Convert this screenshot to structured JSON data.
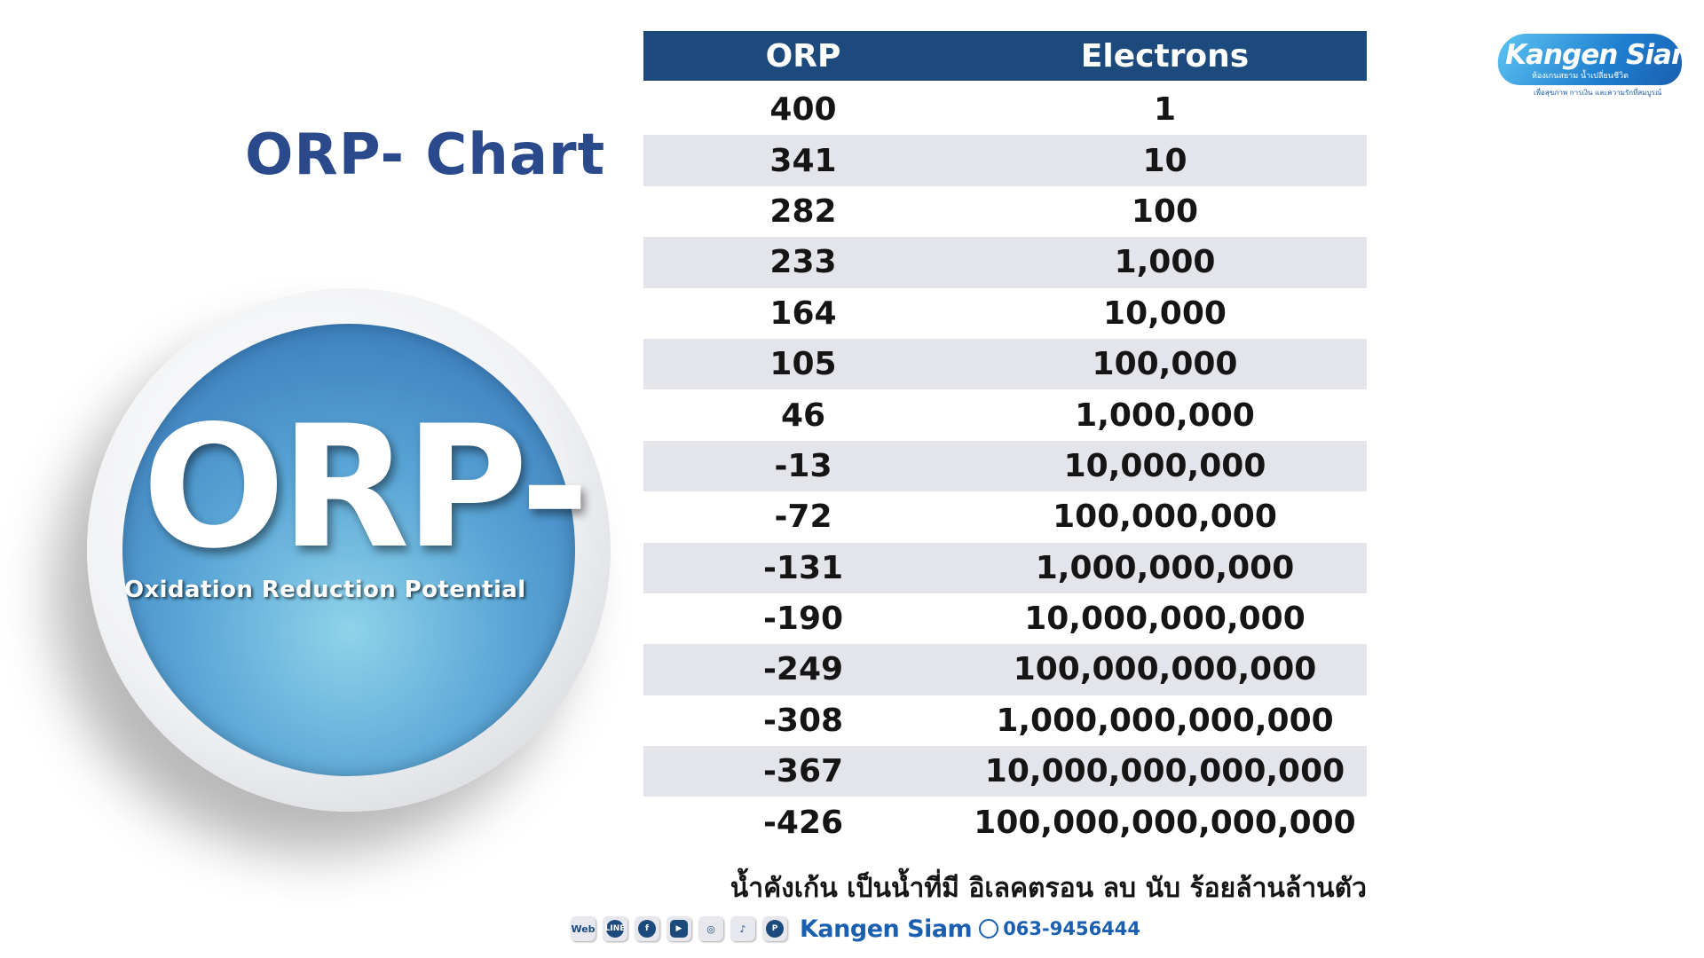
{
  "title": "ORP- Chart",
  "badge": {
    "big_text": "ORP-",
    "subtitle": "Oxidation Reduction Potential"
  },
  "table": {
    "headers": [
      "ORP",
      "Electrons"
    ],
    "rows": [
      [
        "400",
        "1"
      ],
      [
        "341",
        "10"
      ],
      [
        "282",
        "100"
      ],
      [
        "233",
        "1,000"
      ],
      [
        "164",
        "10,000"
      ],
      [
        "105",
        "100,000"
      ],
      [
        "46",
        "1,000,000"
      ],
      [
        "-13",
        "10,000,000"
      ],
      [
        "-72",
        "100,000,000"
      ],
      [
        "-131",
        "1,000,000,000"
      ],
      [
        "-190",
        "10,000,000,000"
      ],
      [
        "-249",
        "100,000,000,000"
      ],
      [
        "-308",
        "1,000,000,000,000"
      ],
      [
        "-367",
        "10,000,000,000,000"
      ],
      [
        "-426",
        "100,000,000,000,000"
      ]
    ]
  },
  "note": "น้ำคังเก้น เป็นน้ำที่มี อิเลคตรอน ลบ นับ ร้อยล้านล้านตัว",
  "logo": {
    "brand": "Kangen Siam",
    "tagline": "ห้องเกนสยาม น้ำเปลี่ยนชีวิต",
    "tagline2": "เพื่อสุขภาพ การเงิน และความรักที่สมบูรณ์"
  },
  "footer": {
    "icons": [
      {
        "name": "web-icon",
        "label": "Web"
      },
      {
        "name": "line-icon",
        "label": "LINE"
      },
      {
        "name": "facebook-icon",
        "label": "f"
      },
      {
        "name": "youtube-icon",
        "label": "▶"
      },
      {
        "name": "instagram-icon",
        "label": "◎"
      },
      {
        "name": "tiktok-icon",
        "label": "♪"
      },
      {
        "name": "pinterest-icon",
        "label": "P"
      }
    ],
    "brand": "Kangen Siam",
    "phone": "063-9456444"
  },
  "colors": {
    "title": "#2b4a8b",
    "header_bg": "#1d4a7c",
    "alt_row_bg": "#e3e5ea",
    "brand_blue": "#1b5fb0"
  }
}
